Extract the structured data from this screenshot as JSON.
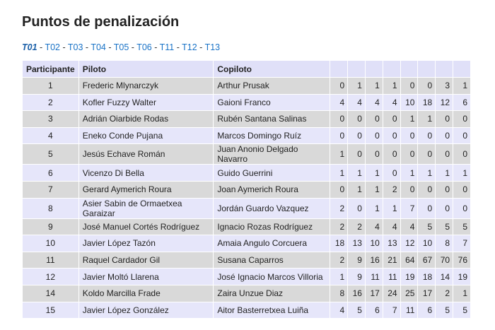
{
  "title": "Puntos de penalización",
  "tabs": [
    {
      "label": "T01",
      "active": true
    },
    {
      "label": "T02"
    },
    {
      "label": "T03"
    },
    {
      "label": "T04"
    },
    {
      "label": "T05"
    },
    {
      "label": "T06"
    },
    {
      "label": "T11"
    },
    {
      "label": "T12"
    },
    {
      "label": "T13"
    }
  ],
  "tab_separator": " - ",
  "headers": {
    "participante": "Participante",
    "piloto": "Piloto",
    "copiloto": "Copiloto"
  },
  "rows": [
    {
      "num": "1",
      "piloto": "Frederic Mlynarczyk",
      "copiloto": "Arthur Prusak",
      "pts": [
        0,
        1,
        1,
        1,
        0,
        0,
        3,
        1
      ]
    },
    {
      "num": "2",
      "piloto": "Kofler Fuzzy Walter",
      "copiloto": "Gaioni Franco",
      "pts": [
        4,
        4,
        4,
        4,
        10,
        18,
        12,
        6
      ]
    },
    {
      "num": "3",
      "piloto": "Adrián Oiarbide Rodas",
      "copiloto": "Rubén Santana Salinas",
      "pts": [
        0,
        0,
        0,
        0,
        1,
        1,
        0,
        0
      ]
    },
    {
      "num": "4",
      "piloto": "Eneko Conde Pujana",
      "copiloto": "Marcos Domingo Ruíz",
      "pts": [
        0,
        0,
        0,
        0,
        0,
        0,
        0,
        0
      ]
    },
    {
      "num": "5",
      "piloto": "Jesús Echave Román",
      "copiloto": "Juan Anonio Delgado Navarro",
      "pts": [
        1,
        0,
        0,
        0,
        0,
        0,
        0,
        0
      ]
    },
    {
      "num": "6",
      "piloto": "Vicenzo Di Bella",
      "copiloto": "Guido Guerrini",
      "pts": [
        1,
        1,
        1,
        0,
        1,
        1,
        1,
        1
      ]
    },
    {
      "num": "7",
      "piloto": "Gerard Aymerich Roura",
      "copiloto": "Joan Aymerich Roura",
      "pts": [
        0,
        1,
        1,
        2,
        0,
        0,
        0,
        0
      ]
    },
    {
      "num": "8",
      "piloto": "Asier Sabin de Ormaetxea Garaizar",
      "copiloto": "Jordán Guardo Vazquez",
      "pts": [
        2,
        0,
        1,
        1,
        7,
        0,
        0,
        0
      ]
    },
    {
      "num": "9",
      "piloto": "José Manuel Cortés Rodríguez",
      "copiloto": "Ignacio Rozas Rodríguez",
      "pts": [
        2,
        2,
        4,
        4,
        4,
        5,
        5,
        5
      ]
    },
    {
      "num": "10",
      "piloto": "Javier López Tazón",
      "copiloto": "Amaia Angulo Corcuera",
      "pts": [
        18,
        13,
        10,
        13,
        12,
        10,
        8,
        7
      ]
    },
    {
      "num": "11",
      "piloto": "Raquel Cardador Gil",
      "copiloto": "Susana Caparros",
      "pts": [
        2,
        9,
        16,
        21,
        64,
        67,
        70,
        76
      ]
    },
    {
      "num": "12",
      "piloto": "Javier Moltó Llarena",
      "copiloto": "José Ignacio Marcos Villoria",
      "pts": [
        1,
        9,
        11,
        11,
        19,
        18,
        14,
        19
      ]
    },
    {
      "num": "14",
      "piloto": "Koldo Marcilla Frade",
      "copiloto": "Zaira Unzue Diaz",
      "pts": [
        8,
        16,
        17,
        24,
        25,
        17,
        2,
        1
      ]
    },
    {
      "num": "15",
      "piloto": "Javier López González",
      "copiloto": "Aitor Basterretxea Luiña",
      "pts": [
        4,
        5,
        6,
        7,
        11,
        6,
        5,
        5
      ]
    }
  ]
}
